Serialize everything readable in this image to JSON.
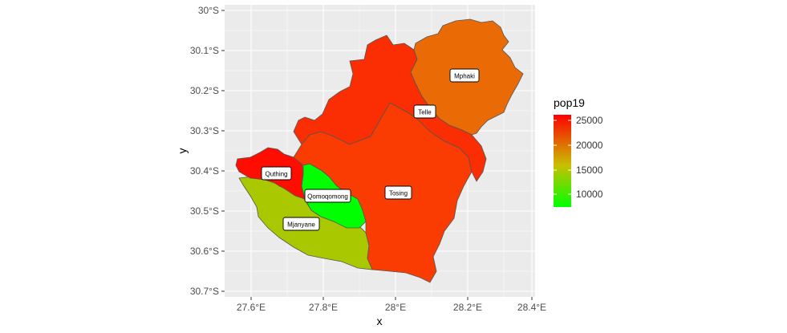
{
  "axes": {
    "x_title": "x",
    "y_title": "y",
    "x_ticks": [
      "27.6°E",
      "27.8°E",
      "28°E",
      "28.2°E",
      "28.4°E"
    ],
    "y_ticks": [
      "30°S",
      "30.1°S",
      "30.2°S",
      "30.3°S",
      "30.4°S",
      "30.5°S",
      "30.6°S",
      "30.7°S"
    ]
  },
  "legend": {
    "title": "pop19",
    "ticks": [
      "25000",
      "20000",
      "15000",
      "10000"
    ],
    "gradient": {
      "low_color": "#00ff00",
      "mid_color": "#c8c000",
      "high_color": "#ff0000"
    }
  },
  "regions": [
    {
      "name": "Mphaki",
      "fill": "#ea6b05"
    },
    {
      "name": "Telle",
      "fill": "#fb2d02"
    },
    {
      "name": "Tosing",
      "fill": "#fa3c02"
    },
    {
      "name": "Quthing",
      "fill": "#ff0d00"
    },
    {
      "name": "Qomoqomong",
      "fill": "#00ff00"
    },
    {
      "name": "Mjanyane",
      "fill": "#a9c800"
    }
  ]
}
